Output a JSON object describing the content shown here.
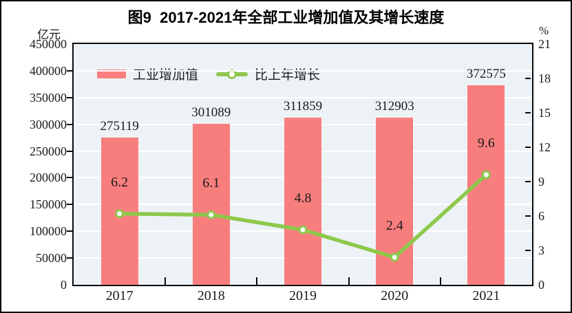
{
  "chart_data": {
    "type": "combo",
    "title": "图9  2017-2021年全部工业增加值及其增长速度",
    "categories": [
      "2017",
      "2018",
      "2019",
      "2020",
      "2021"
    ],
    "series": [
      {
        "name": "工业增加值",
        "type": "bar",
        "axis": "left",
        "color": "#f87e7e",
        "values": [
          275119,
          301089,
          311859,
          312903,
          372575
        ],
        "value_labels": [
          "275119",
          "301089",
          "311859",
          "312903",
          "372575"
        ]
      },
      {
        "name": "比上年增长",
        "type": "line",
        "axis": "right",
        "color": "#8dc84b",
        "marker": "circle-white-fill",
        "values": [
          6.2,
          6.1,
          4.8,
          2.4,
          9.6
        ],
        "value_labels": [
          "6.2",
          "6.1",
          "4.8",
          "2.4",
          "9.6"
        ]
      }
    ],
    "left_axis": {
      "unit": "亿元",
      "min": 0,
      "max": 450000,
      "step": 50000,
      "ticks": [
        0,
        50000,
        100000,
        150000,
        200000,
        250000,
        300000,
        350000,
        400000,
        450000
      ]
    },
    "right_axis": {
      "unit": "%",
      "min": 0,
      "max": 21,
      "step": 3,
      "ticks": [
        0,
        3,
        6,
        9,
        12,
        15,
        18,
        21
      ]
    },
    "grid": true,
    "gridline_color": "#ffffff",
    "plot_background": "#edf2f6",
    "legend_position": "top-left-inside"
  }
}
